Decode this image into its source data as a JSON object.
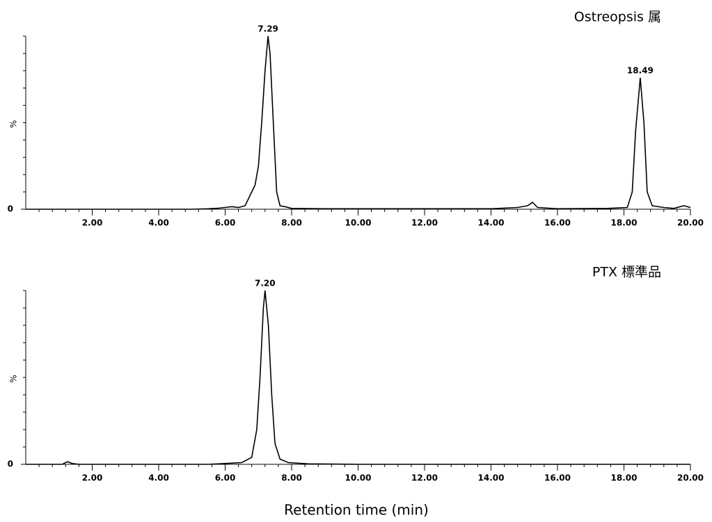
{
  "chart_data": [
    {
      "type": "line",
      "title": "Ostreopsis 属",
      "ylabel": "%",
      "x": [
        0,
        1,
        2,
        3,
        4,
        5,
        5.5,
        5.8,
        6.0,
        6.2,
        6.4,
        6.6,
        6.8,
        6.9,
        7.0,
        7.1,
        7.2,
        7.29,
        7.35,
        7.45,
        7.55,
        7.65,
        7.8,
        8.0,
        9,
        10,
        12,
        14,
        14.8,
        15.1,
        15.25,
        15.4,
        16,
        17.5,
        18.1,
        18.25,
        18.35,
        18.49,
        18.6,
        18.7,
        18.85,
        19.2,
        19.5,
        19.8,
        20
      ],
      "values": [
        0,
        0,
        0,
        0,
        0,
        0,
        0.3,
        0.6,
        1,
        1.5,
        1,
        2,
        10,
        14,
        25,
        50,
        80,
        100,
        90,
        50,
        10,
        2,
        1.5,
        0.5,
        0.3,
        0.3,
        0.3,
        0.3,
        1,
        2,
        4,
        1,
        0.3,
        0.5,
        1,
        10,
        45,
        76,
        50,
        10,
        2,
        1,
        0.5,
        2,
        1
      ],
      "color": "#000000",
      "xlim": [
        0,
        20
      ],
      "xticks": [
        {
          "value": 2,
          "label": "2.00"
        },
        {
          "value": 4,
          "label": "4.00"
        },
        {
          "value": 6,
          "label": "6.00"
        },
        {
          "value": 8,
          "label": "8.00"
        },
        {
          "value": 10,
          "label": "10.00"
        },
        {
          "value": 12,
          "label": "12.00"
        },
        {
          "value": 14,
          "label": "14.00"
        },
        {
          "value": 16,
          "label": "16.00"
        },
        {
          "value": 18,
          "label": "18.00"
        },
        {
          "value": 20,
          "label": "20.00"
        }
      ],
      "ylim": [
        0,
        100
      ],
      "yticks": [
        0
      ],
      "peaks": [
        {
          "x": 7.29,
          "y": 100,
          "label": "7.29"
        },
        {
          "x": 18.49,
          "y": 76,
          "label": "18.49"
        }
      ]
    },
    {
      "type": "line",
      "title": "PTX 標準品",
      "ylabel": "%",
      "xlabel": "Retention time (min)",
      "x": [
        0,
        1.1,
        1.25,
        1.4,
        1.6,
        3,
        5.5,
        6.0,
        6.5,
        6.8,
        6.95,
        7.05,
        7.15,
        7.2,
        7.3,
        7.4,
        7.5,
        7.65,
        7.9,
        8.5,
        10,
        15,
        20
      ],
      "values": [
        0,
        0,
        1.5,
        0.5,
        0,
        0,
        0,
        0.5,
        1,
        4,
        20,
        50,
        90,
        100,
        80,
        40,
        12,
        3,
        1,
        0.3,
        0,
        0,
        0
      ],
      "color": "#000000",
      "xlim": [
        0,
        20
      ],
      "xticks": [
        {
          "value": 2,
          "label": "2.00"
        },
        {
          "value": 4,
          "label": "4.00"
        },
        {
          "value": 6,
          "label": "6.00"
        },
        {
          "value": 8,
          "label": "8.00"
        },
        {
          "value": 10,
          "label": "10.00"
        },
        {
          "value": 12,
          "label": "12.00"
        },
        {
          "value": 14,
          "label": "14.00"
        },
        {
          "value": 16,
          "label": "16.00"
        },
        {
          "value": 18,
          "label": "18.00"
        },
        {
          "value": 20,
          "label": "20.00"
        }
      ],
      "ylim": [
        0,
        100
      ],
      "yticks": [
        0
      ],
      "peaks": [
        {
          "x": 7.2,
          "y": 100,
          "label": "7.20"
        }
      ]
    }
  ]
}
